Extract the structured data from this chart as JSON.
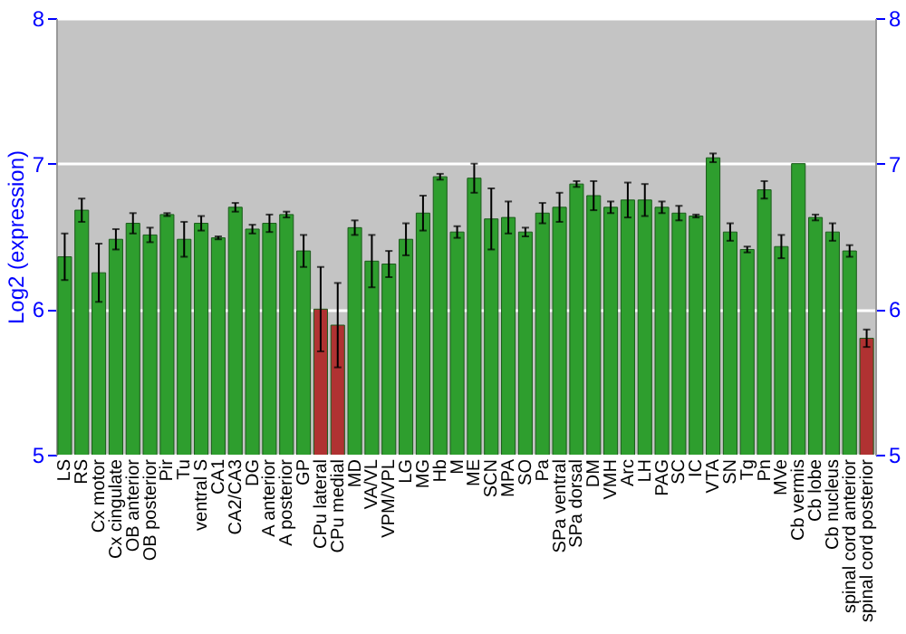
{
  "chart_data": {
    "type": "bar",
    "ylabel": "Log2 (expression)",
    "categories": [
      "LS",
      "RS",
      "Cx motor",
      "Cx cingulate",
      "OB anterior",
      "OB posterior",
      "Pir",
      "Tu",
      "ventral S",
      "CA1",
      "CA2/CA3",
      "DG",
      "A anterior",
      "A posterior",
      "GP",
      "CPu lateral",
      "CPu medial",
      "MD",
      "VA/VL",
      "VPM/VPL",
      "LG",
      "MG",
      "Hb",
      "M",
      "ME",
      "SCN",
      "MPA",
      "SO",
      "Pa",
      "SPa ventral",
      "SPa dorsal",
      "DM",
      "VMH",
      "Arc",
      "LH",
      "PAG",
      "SC",
      "IC",
      "VTA",
      "SN",
      "Tg",
      "Pn",
      "MVe",
      "Cb vermis",
      "Cb lobe",
      "Cb nucleus",
      "spinal cord anterior",
      "spinal cord posterior"
    ],
    "values": [
      6.36,
      6.68,
      6.25,
      6.48,
      6.59,
      6.51,
      6.65,
      6.48,
      6.59,
      6.49,
      6.7,
      6.55,
      6.59,
      6.65,
      6.4,
      6.0,
      5.89,
      6.56,
      6.33,
      6.31,
      6.48,
      6.66,
      6.91,
      6.53,
      6.9,
      6.62,
      6.63,
      6.53,
      6.66,
      6.7,
      6.86,
      6.78,
      6.7,
      6.75,
      6.75,
      6.7,
      6.66,
      6.64,
      7.04,
      6.53,
      6.41,
      6.82,
      6.43,
      7.0,
      6.63,
      6.53,
      6.4,
      5.8
    ],
    "errors": [
      0.16,
      0.08,
      0.2,
      0.07,
      0.07,
      0.05,
      0.01,
      0.12,
      0.05,
      0.01,
      0.03,
      0.03,
      0.06,
      0.02,
      0.11,
      0.29,
      0.29,
      0.05,
      0.18,
      0.09,
      0.11,
      0.12,
      0.02,
      0.04,
      0.1,
      0.21,
      0.11,
      0.03,
      0.07,
      0.1,
      0.02,
      0.1,
      0.04,
      0.12,
      0.11,
      0.04,
      0.05,
      0.01,
      0.03,
      0.06,
      0.02,
      0.06,
      0.08,
      null,
      0.02,
      0.06,
      0.04,
      0.06
    ],
    "colors": [
      "#2e9e2e",
      "#2e9e2e",
      "#2e9e2e",
      "#2e9e2e",
      "#2e9e2e",
      "#2e9e2e",
      "#2e9e2e",
      "#2e9e2e",
      "#2e9e2e",
      "#2e9e2e",
      "#2e9e2e",
      "#2e9e2e",
      "#2e9e2e",
      "#2e9e2e",
      "#2e9e2e",
      "#b03232",
      "#b03232",
      "#2e9e2e",
      "#2e9e2e",
      "#2e9e2e",
      "#2e9e2e",
      "#2e9e2e",
      "#2e9e2e",
      "#2e9e2e",
      "#2e9e2e",
      "#2e9e2e",
      "#2e9e2e",
      "#2e9e2e",
      "#2e9e2e",
      "#2e9e2e",
      "#2e9e2e",
      "#2e9e2e",
      "#2e9e2e",
      "#2e9e2e",
      "#2e9e2e",
      "#2e9e2e",
      "#2e9e2e",
      "#2e9e2e",
      "#2e9e2e",
      "#2e9e2e",
      "#2e9e2e",
      "#2e9e2e",
      "#2e9e2e",
      "#2e9e2e",
      "#2e9e2e",
      "#2e9e2e",
      "#2e9e2e",
      "#b03232"
    ],
    "ylim": [
      5,
      8
    ],
    "yticks": [
      5,
      6,
      7,
      8
    ],
    "y2lim": [
      5,
      8
    ],
    "y2ticks": [
      5,
      6,
      7,
      8
    ],
    "grid": "y"
  }
}
